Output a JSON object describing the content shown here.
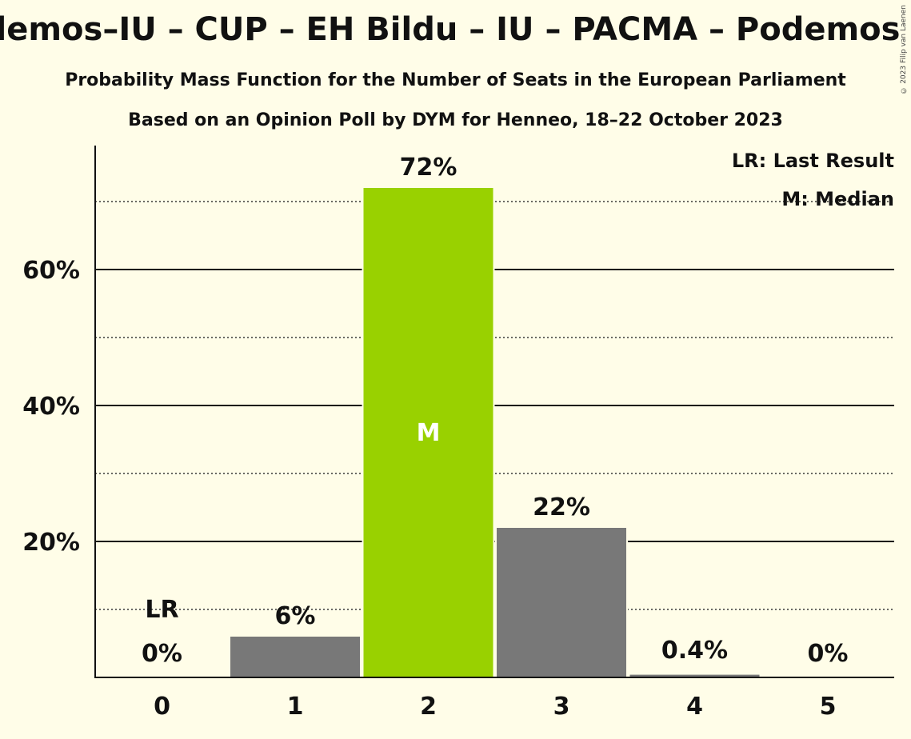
{
  "header": {
    "title": "demos–IU – CUP – EH Bildu – IU – PACMA – Podemos –",
    "subtitle": "Probability Mass Function for the Number of Seats in the European Parliament",
    "subtitle2": "Based on an Opinion Poll by DYM for Henneo, 18–22 October 2023",
    "copyright": "© 2023 Filip van Laenen"
  },
  "legend": {
    "last_result": "LR: Last Result",
    "median": "M: Median"
  },
  "colors": {
    "background": "#fffde8",
    "bar": "#787878",
    "median_bar": "#99d100",
    "axis": "#111111"
  },
  "chart_data": {
    "type": "bar",
    "categories": [
      "0",
      "1",
      "2",
      "3",
      "4",
      "5"
    ],
    "values": [
      0,
      6,
      72,
      22,
      0.4,
      0
    ],
    "data_labels": [
      "0%",
      "6%",
      "72%",
      "22%",
      "0.4%",
      "0%"
    ],
    "ytick_labels": [
      "20%",
      "40%",
      "60%"
    ],
    "yticks": [
      20,
      40,
      60
    ],
    "minor_gridlines": [
      10,
      30,
      50,
      70
    ],
    "ylim": [
      0,
      78
    ],
    "median_index": 2,
    "median_marker": "M",
    "last_result_index": 0,
    "last_result_marker": "LR",
    "grid": true,
    "legend_position": "top-right"
  }
}
